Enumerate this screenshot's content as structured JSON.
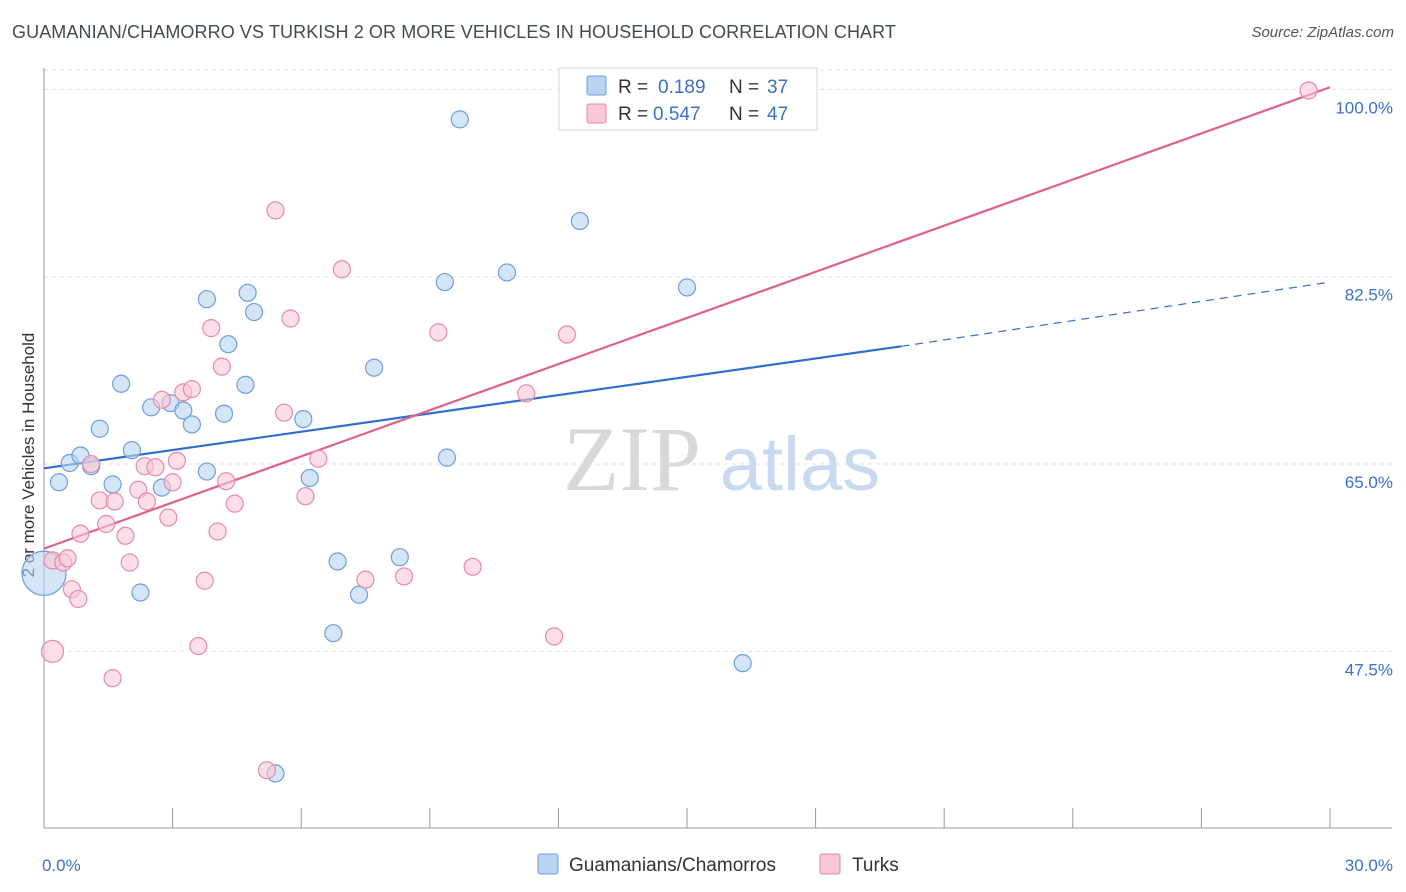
{
  "title": "GUAMANIAN/CHAMORRO VS TURKISH 2 OR MORE VEHICLES IN HOUSEHOLD CORRELATION CHART",
  "source": "Source: ZipAtlas.com",
  "watermark": {
    "zip": "ZIP",
    "atlas": "atlas"
  },
  "colors": {
    "guam_fill": "#b8d3f3",
    "guam_stroke": "#6d9fdc",
    "guam_line": "#2f6fcf",
    "turk_fill": "#f8c8d6",
    "turk_stroke": "#e68aa8",
    "turk_line": "#e0608a",
    "tick_label": "#3a72c4",
    "grid": "#e3e3e3"
  },
  "legend": {
    "rows": [
      {
        "r_label": "R =",
        "r_value": "0.189",
        "n_label": "N =",
        "n_value": "37"
      },
      {
        "r_label": "R =",
        "r_value": "0.547",
        "n_label": "N =",
        "n_value": "47"
      }
    ]
  },
  "bottom_legend": [
    "Guamanians/Chamorros",
    "Turks"
  ],
  "chart_data": {
    "type": "scatter",
    "title": "GUAMANIAN/CHAMORRO VS TURKISH 2 OR MORE VEHICLES IN HOUSEHOLD CORRELATION CHART",
    "xlabel": "",
    "ylabel": "2 or more Vehicles in Household",
    "xlim": [
      0,
      30
    ],
    "ylim": [
      31,
      102
    ],
    "x_tick_labels": [
      "0.0%",
      "30.0%"
    ],
    "y_ticks": [
      47.5,
      65.0,
      82.5,
      100.0
    ],
    "y_tick_labels": [
      "47.5%",
      "65.0%",
      "82.5%",
      "100.0%"
    ],
    "grid": true,
    "legend_position": "top-center",
    "series": [
      {
        "name": "Guamanians/Chamorros",
        "points": [
          [
            0.0,
            54.8
          ],
          [
            0.35,
            63.3
          ],
          [
            0.6,
            65.1
          ],
          [
            0.85,
            65.8
          ],
          [
            1.1,
            64.8
          ],
          [
            1.3,
            68.3
          ],
          [
            1.6,
            63.1
          ],
          [
            1.8,
            72.5
          ],
          [
            2.05,
            66.3
          ],
          [
            2.25,
            53.0
          ],
          [
            2.5,
            70.3
          ],
          [
            2.75,
            62.8
          ],
          [
            2.95,
            70.7
          ],
          [
            3.25,
            70.0
          ],
          [
            3.45,
            68.7
          ],
          [
            3.8,
            64.3
          ],
          [
            3.8,
            80.4
          ],
          [
            4.2,
            69.7
          ],
          [
            4.3,
            76.2
          ],
          [
            4.7,
            72.4
          ],
          [
            4.75,
            81.0
          ],
          [
            4.9,
            79.2
          ],
          [
            5.4,
            36.1
          ],
          [
            6.05,
            69.2
          ],
          [
            6.2,
            63.7
          ],
          [
            6.75,
            49.2
          ],
          [
            6.85,
            55.9
          ],
          [
            7.35,
            52.8
          ],
          [
            7.7,
            74.0
          ],
          [
            8.3,
            56.3
          ],
          [
            9.35,
            82.0
          ],
          [
            9.4,
            65.6
          ],
          [
            9.7,
            97.2
          ],
          [
            10.8,
            82.9
          ],
          [
            12.5,
            87.7
          ],
          [
            15.0,
            81.5
          ],
          [
            16.3,
            46.4
          ]
        ]
      },
      {
        "name": "Turks",
        "points": [
          [
            0.2,
            47.5
          ],
          [
            0.2,
            56.0
          ],
          [
            0.45,
            55.8
          ],
          [
            0.55,
            56.2
          ],
          [
            0.65,
            53.3
          ],
          [
            0.8,
            52.4
          ],
          [
            0.85,
            58.5
          ],
          [
            1.1,
            65.0
          ],
          [
            1.3,
            61.6
          ],
          [
            1.45,
            59.4
          ],
          [
            1.6,
            45.0
          ],
          [
            1.65,
            61.5
          ],
          [
            1.9,
            58.3
          ],
          [
            2.0,
            55.8
          ],
          [
            2.2,
            62.6
          ],
          [
            2.35,
            64.8
          ],
          [
            2.4,
            61.5
          ],
          [
            2.6,
            64.7
          ],
          [
            2.75,
            71.0
          ],
          [
            2.9,
            60.0
          ],
          [
            3.0,
            63.3
          ],
          [
            3.1,
            65.3
          ],
          [
            3.25,
            71.7
          ],
          [
            3.45,
            72.0
          ],
          [
            3.6,
            48.0
          ],
          [
            3.75,
            54.1
          ],
          [
            3.9,
            77.7
          ],
          [
            4.05,
            58.7
          ],
          [
            4.15,
            74.1
          ],
          [
            4.25,
            63.4
          ],
          [
            4.45,
            61.3
          ],
          [
            5.2,
            36.4
          ],
          [
            5.4,
            88.7
          ],
          [
            5.6,
            69.8
          ],
          [
            5.75,
            78.6
          ],
          [
            6.1,
            62.0
          ],
          [
            6.4,
            65.5
          ],
          [
            6.95,
            83.2
          ],
          [
            7.5,
            54.2
          ],
          [
            8.4,
            54.5
          ],
          [
            9.2,
            77.3
          ],
          [
            10.0,
            55.4
          ],
          [
            11.25,
            71.6
          ],
          [
            11.9,
            48.9
          ],
          [
            12.2,
            77.1
          ],
          [
            12.4,
            99.9
          ],
          [
            29.5,
            99.9
          ]
        ]
      }
    ],
    "trend_lines": [
      {
        "name": "Guamanians/Chamorros",
        "x0": 0,
        "y0": 64.6,
        "x1": 20.0,
        "y1": 76.0,
        "dashed_to_x": 30,
        "dashed_to_y": 82.0
      },
      {
        "name": "Turks",
        "x0": 0,
        "y0": 57.1,
        "x1": 30,
        "y1": 100.2
      }
    ]
  }
}
